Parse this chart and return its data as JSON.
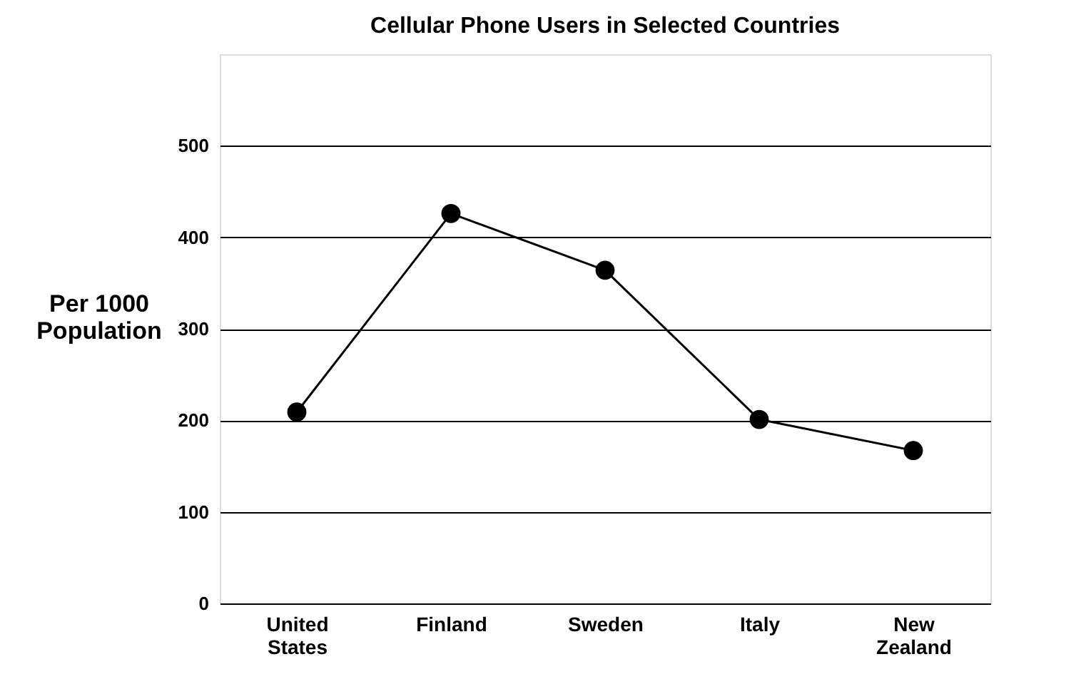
{
  "chart_data": {
    "type": "line",
    "title": "Cellular Phone Users in Selected Countries",
    "ylabel": "Per 1000\nPopulation",
    "categories": [
      "United States",
      "Finland",
      "Sweden",
      "Italy",
      "New Zealand"
    ],
    "series": [
      {
        "color": "#000000",
        "values": [
          209,
          426,
          364,
          201,
          167
        ]
      }
    ],
    "ylim": [
      0,
      600
    ],
    "yticks": [
      0,
      100,
      200,
      300,
      400,
      500
    ],
    "grid": "y",
    "marker": "circle",
    "line_style": "solid"
  }
}
